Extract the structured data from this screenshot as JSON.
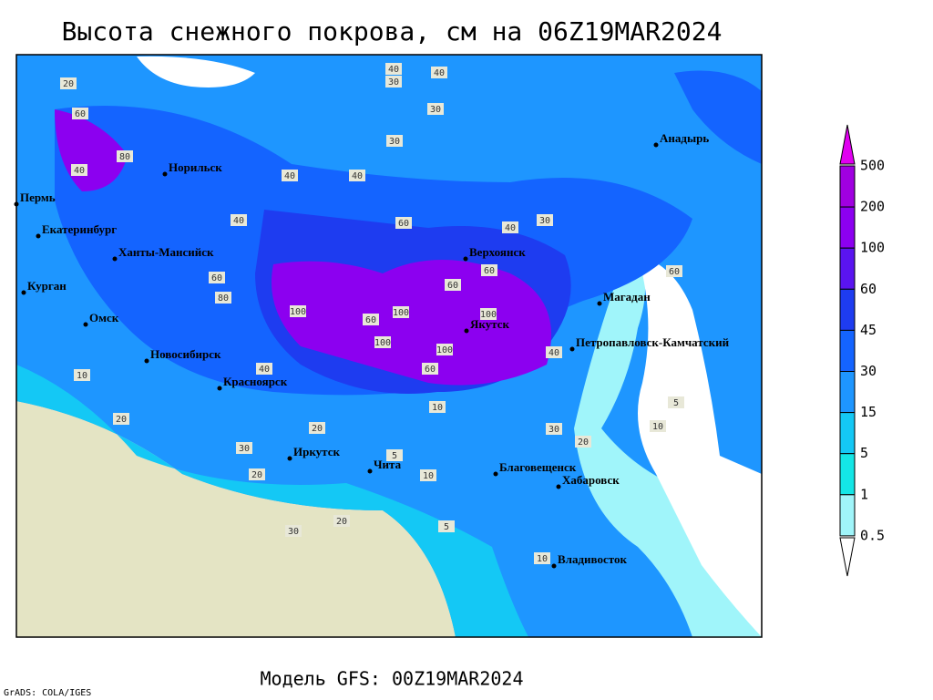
{
  "header": {
    "title": "Высота снежного покрова, см на 06Z19MAR2024"
  },
  "footer": {
    "model": "Модель GFS: 00Z19MAR2024",
    "credit": "GrADS: COLA/IGES"
  },
  "legend": {
    "levels": [
      500,
      200,
      100,
      60,
      45,
      30,
      15,
      5,
      1,
      0.5
    ],
    "colors": [
      "#e000f0",
      "#a000e0",
      "#8c00f0",
      "#5a14f0",
      "#1e3cf0",
      "#1464ff",
      "#1e96ff",
      "#14c8f5",
      "#14e6e6",
      "#a0f5fa",
      "#ffffff"
    ]
  },
  "cities": [
    "Норильск",
    "Пермь",
    "Екатеринбург",
    "Ханты-Мансийск",
    "Курган",
    "Омск",
    "Новосибирск",
    "Красноярск",
    "Иркутск",
    "Чита",
    "Верхоянск",
    "Якутск",
    "Анадырь",
    "Магадан",
    "Петропавловск-Камчатский",
    "Благовещенск",
    "Хабаровск",
    "Владивосток"
  ],
  "contour_labels": [
    40,
    40,
    30,
    20,
    60,
    80,
    40,
    40,
    30,
    40,
    60,
    40,
    60,
    60,
    80,
    100,
    60,
    100,
    100,
    60,
    100,
    100,
    60,
    40,
    30,
    40,
    20,
    20,
    30,
    10,
    5,
    10,
    20,
    30,
    20,
    10,
    5,
    10,
    30,
    20,
    5,
    10,
    40,
    60,
    30
  ]
}
